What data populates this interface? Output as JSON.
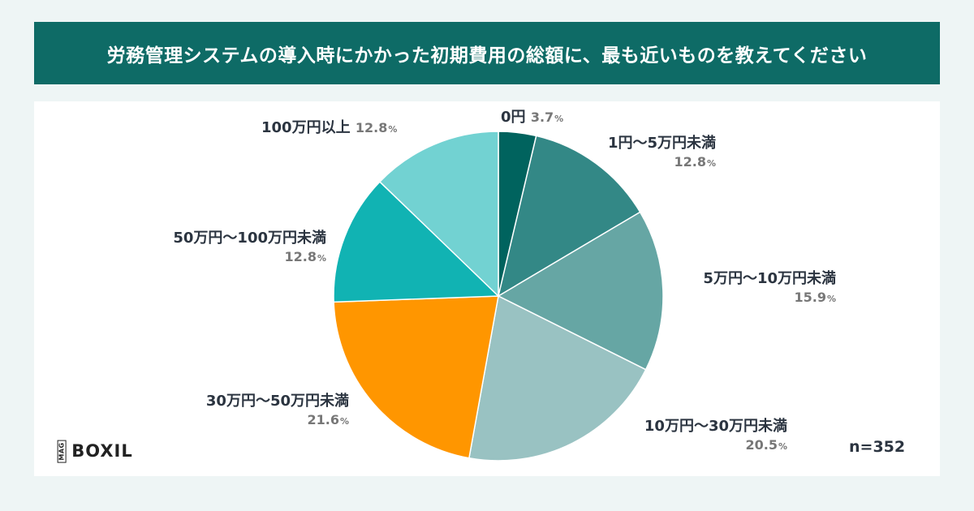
{
  "header": {
    "title": "労務管理システムの導入時にかかった初期費用の総額に、最も近いものを教えてください"
  },
  "logo": {
    "mag": "MAG",
    "text": "BOXIL"
  },
  "sample": {
    "n": "n=352"
  },
  "chart_data": {
    "type": "pie",
    "title": "労務管理システムの導入時にかかった初期費用の総額に、最も近いものを教えてください",
    "slices": [
      {
        "label": "0円",
        "value": 3.7,
        "pct_text": "3.7",
        "color": "#00635e"
      },
      {
        "label": "1円～5万円未満",
        "value": 12.8,
        "pct_text": "12.8",
        "color": "#338886"
      },
      {
        "label": "5万円～10万円未満",
        "value": 15.9,
        "pct_text": "15.9",
        "color": "#66a6a4"
      },
      {
        "label": "10万円～30万円未満",
        "value": 20.5,
        "pct_text": "20.5",
        "color": "#99c2c2"
      },
      {
        "label": "30万円～50万円未満",
        "value": 21.6,
        "pct_text": "21.6",
        "color": "#ff9600"
      },
      {
        "label": "50万円～100万円未満",
        "value": 12.8,
        "pct_text": "12.8",
        "color": "#11b3b3"
      },
      {
        "label": "100万円以上",
        "value": 12.8,
        "pct_text": "12.8",
        "color": "#72d2d2"
      }
    ],
    "percent_sign": "%",
    "n": "n=352"
  }
}
